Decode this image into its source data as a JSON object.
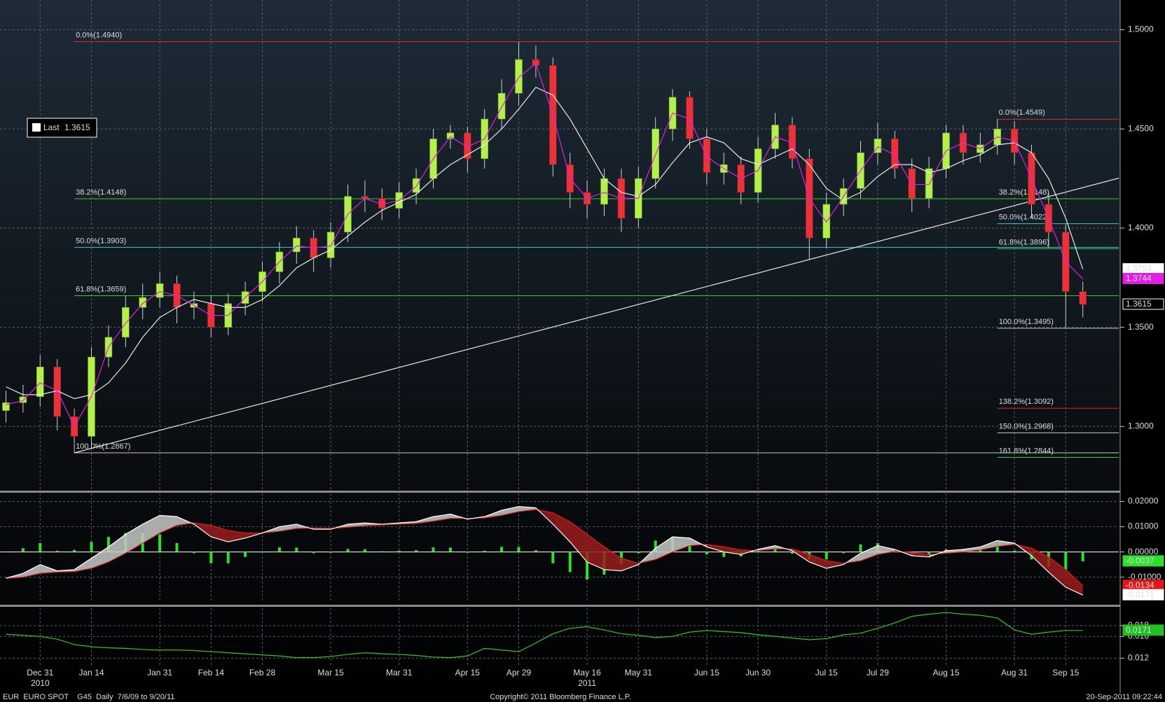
{
  "chart_data": [
    {
      "type": "candlestick",
      "categories": [
        null,
        null,
        "Dec 31",
        null,
        null,
        "Jan 14",
        null,
        null,
        null,
        "Jan 31",
        null,
        null,
        "Feb 14",
        null,
        null,
        "Feb 28",
        null,
        null,
        null,
        "Mar 15",
        null,
        null,
        null,
        "Mar 31",
        null,
        null,
        null,
        "Apr 15",
        null,
        null,
        "Apr 29",
        null,
        null,
        null,
        "May 16",
        null,
        null,
        "May 31",
        null,
        null,
        null,
        "Jun 15",
        null,
        null,
        "Jun 30",
        null,
        null,
        null,
        "Jul 15",
        null,
        null,
        "Jul 29",
        null,
        null,
        null,
        "Aug 15",
        null,
        null,
        null,
        "Aug 31",
        null,
        null,
        "Sep 15",
        null
      ],
      "annotations": [
        {
          "text": "2010",
          "at": "Dec 31"
        },
        {
          "text": "2011",
          "at": "May 16"
        }
      ],
      "open": [
        1.308,
        1.312,
        1.315,
        1.33,
        1.305,
        1.295,
        1.335,
        1.345,
        1.36,
        1.365,
        1.372,
        1.36,
        1.362,
        1.35,
        1.362,
        1.368,
        1.378,
        1.388,
        1.395,
        1.385,
        1.398,
        1.416,
        1.415,
        1.41,
        1.418,
        1.425,
        1.445,
        1.448,
        1.435,
        1.455,
        1.468,
        1.485,
        1.482,
        1.432,
        1.418,
        1.412,
        1.425,
        1.405,
        1.425,
        1.45,
        1.466,
        1.445,
        1.428,
        1.432,
        1.418,
        1.44,
        1.452,
        1.435,
        1.395,
        1.412,
        1.42,
        1.438,
        1.445,
        1.43,
        1.415,
        1.43,
        1.448,
        1.438,
        1.442,
        1.45,
        1.438,
        1.412,
        1.398,
        1.368
      ],
      "high": [
        1.318,
        1.321,
        1.336,
        1.334,
        1.309,
        1.34,
        1.351,
        1.366,
        1.372,
        1.378,
        1.376,
        1.368,
        1.366,
        1.367,
        1.373,
        1.383,
        1.393,
        1.401,
        1.399,
        1.403,
        1.422,
        1.424,
        1.42,
        1.423,
        1.43,
        1.45,
        1.452,
        1.451,
        1.46,
        1.475,
        1.494,
        1.492,
        1.486,
        1.438,
        1.424,
        1.43,
        1.43,
        1.431,
        1.456,
        1.47,
        1.469,
        1.45,
        1.438,
        1.436,
        1.446,
        1.458,
        1.456,
        1.44,
        1.418,
        1.425,
        1.444,
        1.453,
        1.449,
        1.435,
        1.436,
        1.452,
        1.452,
        1.448,
        1.455,
        1.454,
        1.442,
        1.418,
        1.402,
        1.373
      ],
      "low": [
        1.302,
        1.307,
        1.31,
        1.298,
        1.2867,
        1.29,
        1.33,
        1.34,
        1.354,
        1.36,
        1.352,
        1.354,
        1.345,
        1.346,
        1.356,
        1.363,
        1.372,
        1.382,
        1.378,
        1.38,
        1.393,
        1.408,
        1.404,
        1.405,
        1.412,
        1.42,
        1.44,
        1.428,
        1.43,
        1.45,
        1.462,
        1.476,
        1.426,
        1.41,
        1.405,
        1.406,
        1.398,
        1.4,
        1.42,
        1.444,
        1.44,
        1.422,
        1.422,
        1.412,
        1.413,
        1.435,
        1.43,
        1.384,
        1.39,
        1.406,
        1.415,
        1.432,
        1.425,
        1.408,
        1.41,
        1.425,
        1.432,
        1.433,
        1.437,
        1.432,
        1.405,
        1.39,
        1.35,
        1.355
      ],
      "close": [
        1.312,
        1.315,
        1.33,
        1.305,
        1.295,
        1.335,
        1.345,
        1.36,
        1.365,
        1.372,
        1.36,
        1.362,
        1.35,
        1.362,
        1.368,
        1.378,
        1.388,
        1.395,
        1.385,
        1.398,
        1.416,
        1.415,
        1.41,
        1.418,
        1.425,
        1.445,
        1.448,
        1.435,
        1.455,
        1.468,
        1.485,
        1.482,
        1.432,
        1.418,
        1.412,
        1.425,
        1.405,
        1.425,
        1.45,
        1.466,
        1.445,
        1.428,
        1.432,
        1.418,
        1.44,
        1.452,
        1.435,
        1.395,
        1.412,
        1.42,
        1.438,
        1.445,
        1.43,
        1.415,
        1.43,
        1.448,
        1.438,
        1.442,
        1.45,
        1.438,
        1.412,
        1.398,
        1.368,
        1.3615
      ],
      "up_color": "#b4f04c",
      "down_color": "#e8333a",
      "series": [
        {
          "color": "#e8e8e8",
          "values": [
            1.32,
            1.316,
            1.316,
            1.318,
            1.314,
            1.316,
            1.322,
            1.332,
            1.345,
            1.355,
            1.36,
            1.364,
            1.362,
            1.36,
            1.36,
            1.364,
            1.371,
            1.38,
            1.385,
            1.389,
            1.396,
            1.403,
            1.409,
            1.413,
            1.417,
            1.425,
            1.432,
            1.437,
            1.442,
            1.45,
            1.46,
            1.471,
            1.467,
            1.455,
            1.44,
            1.425,
            1.418,
            1.416,
            1.422,
            1.433,
            1.443,
            1.446,
            1.443,
            1.435,
            1.432,
            1.436,
            1.44,
            1.432,
            1.42,
            1.414,
            1.418,
            1.426,
            1.432,
            1.432,
            1.428,
            1.43,
            1.434,
            1.437,
            1.442,
            1.443,
            1.438,
            1.425,
            1.405,
            1.3793
          ]
        },
        {
          "color": "#e020e0",
          "values": [
            1.311,
            1.313,
            1.322,
            1.318,
            1.3,
            1.315,
            1.34,
            1.352,
            1.362,
            1.368,
            1.366,
            1.361,
            1.356,
            1.356,
            1.365,
            1.373,
            1.383,
            1.391,
            1.39,
            1.391,
            1.407,
            1.415,
            1.412,
            1.414,
            1.421,
            1.435,
            1.446,
            1.441,
            1.445,
            1.461,
            1.476,
            1.483,
            1.457,
            1.425,
            1.415,
            1.418,
            1.415,
            1.415,
            1.437,
            1.458,
            1.455,
            1.436,
            1.43,
            1.425,
            1.429,
            1.446,
            1.443,
            1.415,
            1.403,
            1.416,
            1.429,
            1.441,
            1.437,
            1.422,
            1.422,
            1.439,
            1.443,
            1.44,
            1.446,
            1.444,
            1.425,
            1.405,
            1.383,
            1.3744
          ]
        }
      ],
      "trendline": [
        1.2867,
        1.4252
      ],
      "legend_label": "Last",
      "fibonacci": [
        {
          "levels": [
            {
              "label": "0.0%(1.4940)",
              "value": 1.494,
              "color": "#e02828"
            },
            {
              "label": "38.2%(1.4148)",
              "value": 1.4148,
              "color": "#30d030"
            },
            {
              "label": "50.0%(1.3903)",
              "value": 1.3903,
              "color": "#30c8d8"
            },
            {
              "label": "61.8%(1.3659)",
              "value": 1.3659,
              "color": "#30d030"
            },
            {
              "label": "100.0%(1.2867)",
              "value": 1.2867,
              "color": "#c8c8c8"
            }
          ]
        },
        {
          "levels": [
            {
              "label": "0.0%(1.4549)",
              "value": 1.4549,
              "color": "#e02828"
            },
            {
              "label": "38.2%(1.4148)",
              "value": 1.4148,
              "color": "#30d030"
            },
            {
              "label": "50.0%(1.4022)",
              "value": 1.4022,
              "color": "#30c8d8"
            },
            {
              "label": "61.8%(1.3896)",
              "value": 1.3896,
              "color": "#30d030"
            },
            {
              "label": "100.0%(1.3495)",
              "value": 1.3495,
              "color": "#c8c8c8"
            },
            {
              "label": "138.2%(1.3092)",
              "value": 1.3092,
              "color": "#e02828"
            },
            {
              "label": "150.0%(1.2968)",
              "value": 1.2968,
              "color": "#c8c8c8"
            },
            {
              "label": "161.8%(1.2844)",
              "value": 1.2844,
              "color": "#30d030"
            }
          ]
        }
      ],
      "ylim": [
        1.268,
        1.515
      ],
      "yticks": [
        {
          "value": 1.3,
          "label": "1.3000"
        },
        {
          "value": 1.35,
          "label": "1.3500"
        },
        {
          "value": 1.4,
          "label": "1.4000"
        },
        {
          "value": 1.45,
          "label": "1.4500"
        },
        {
          "value": 1.5,
          "label": "1.5000"
        }
      ],
      "grid": true
    },
    {
      "type": "macd",
      "series": [
        {
          "color": "#ffffff",
          "values": [
            -0.0104,
            -0.0085,
            -0.005,
            -0.0075,
            -0.007,
            -0.0025,
            0.002,
            0.007,
            0.011,
            0.0145,
            0.014,
            0.011,
            0.006,
            0.004,
            0.0055,
            0.0075,
            0.01,
            0.011,
            0.009,
            0.009,
            0.011,
            0.0115,
            0.011,
            0.0115,
            0.012,
            0.014,
            0.015,
            0.013,
            0.014,
            0.0165,
            0.018,
            0.0175,
            0.011,
            0.004,
            -0.004,
            -0.007,
            -0.0075,
            -0.005,
            0.0015,
            0.006,
            0.0055,
            0.002,
            0.0,
            -0.001,
            0.001,
            0.0025,
            0.0005,
            -0.004,
            -0.0065,
            -0.005,
            -0.0005,
            0.0025,
            0.001,
            -0.0015,
            -0.002,
            0.0005,
            0.001,
            0.002,
            0.0045,
            0.0035,
            -0.0015,
            -0.008,
            -0.014,
            -0.0171
          ]
        },
        {
          "color": "#d82020",
          "values": [
            -0.0105,
            -0.01,
            -0.0085,
            -0.008,
            -0.0078,
            -0.0065,
            -0.004,
            -0.0005,
            0.0035,
            0.0075,
            0.0105,
            0.0115,
            0.0105,
            0.0085,
            0.0075,
            0.0075,
            0.0082,
            0.0093,
            0.0095,
            0.0093,
            0.0098,
            0.0104,
            0.0107,
            0.011,
            0.0113,
            0.0122,
            0.0133,
            0.0133,
            0.0135,
            0.0145,
            0.016,
            0.0168,
            0.0155,
            0.012,
            0.007,
            0.002,
            -0.0025,
            -0.0045,
            -0.003,
            0.0,
            0.0025,
            0.003,
            0.002,
            0.0008,
            0.0005,
            0.0012,
            0.0012,
            -0.001,
            -0.0035,
            -0.0045,
            -0.0035,
            -0.001,
            0.0002,
            -0.0002,
            -0.001,
            -0.0005,
            0.0,
            0.0008,
            0.0022,
            0.003,
            0.0015,
            -0.002,
            -0.007,
            -0.0134
          ]
        },
        {
          "color": "#2ee02e",
          "values": [
            0.0001,
            0.0015,
            0.0035,
            0.0005,
            0.0008,
            0.004,
            0.006,
            0.0075,
            0.0075,
            0.007,
            0.0035,
            -0.0005,
            -0.0045,
            -0.0045,
            -0.002,
            0.0,
            0.0018,
            0.0017,
            -0.0005,
            -0.0003,
            0.0012,
            0.0011,
            0.0003,
            0.0005,
            0.0007,
            0.0018,
            0.0017,
            -0.0003,
            0.0005,
            0.002,
            0.002,
            0.0007,
            -0.0045,
            -0.008,
            -0.011,
            -0.009,
            -0.005,
            -0.0005,
            0.0045,
            0.006,
            0.003,
            -0.001,
            -0.002,
            -0.0018,
            0.0005,
            0.0013,
            -0.0007,
            -0.003,
            -0.003,
            -0.0005,
            0.003,
            0.0035,
            0.0008,
            -0.0013,
            -0.001,
            0.001,
            0.001,
            0.0012,
            0.0023,
            0.0005,
            -0.003,
            -0.006,
            -0.007,
            -0.0037
          ]
        }
      ],
      "ylim": [
        -0.0201,
        0.0232
      ],
      "yticks": [
        {
          "value": -0.01,
          "label": "-0.01000"
        },
        {
          "value": 0,
          "label": "0.00000"
        },
        {
          "value": 0.01,
          "label": "0.01000"
        },
        {
          "value": 0.02,
          "label": "0.02000"
        }
      ],
      "grid": true
    },
    {
      "type": "line",
      "series": [
        {
          "color": "#2ec82e",
          "values": [
            0.0164,
            0.0162,
            0.016,
            0.0155,
            0.0145,
            0.0141,
            0.0139,
            0.0138,
            0.0136,
            0.0135,
            0.0135,
            0.0134,
            0.0132,
            0.013,
            0.0128,
            0.0126,
            0.0124,
            0.0121,
            0.0121,
            0.0123,
            0.0127,
            0.013,
            0.0128,
            0.0127,
            0.0125,
            0.0122,
            0.0121,
            0.0124,
            0.0138,
            0.0135,
            0.0132,
            0.0148,
            0.0165,
            0.0175,
            0.0178,
            0.0172,
            0.0165,
            0.0162,
            0.0158,
            0.016,
            0.0168,
            0.0171,
            0.0169,
            0.0167,
            0.0163,
            0.016,
            0.0157,
            0.0154,
            0.0156,
            0.0163,
            0.0166,
            0.0175,
            0.0185,
            0.0197,
            0.0201,
            0.0204,
            0.0201,
            0.0199,
            0.0194,
            0.0172,
            0.0164,
            0.0168,
            0.0171,
            0.0171
          ]
        }
      ],
      "ylim": [
        0.0105,
        0.0212
      ],
      "yticks": [
        0.012,
        0.016,
        0.018
      ],
      "grid": true
    }
  ],
  "footer": {
    "left": "EUR  EURO SPOT    G45  Daily  7/6/09 to 9/20/11",
    "center": "Copyright© 2011 Bloomberg Finance L.P.",
    "right": "20-Sep-2011 09:22:44"
  }
}
